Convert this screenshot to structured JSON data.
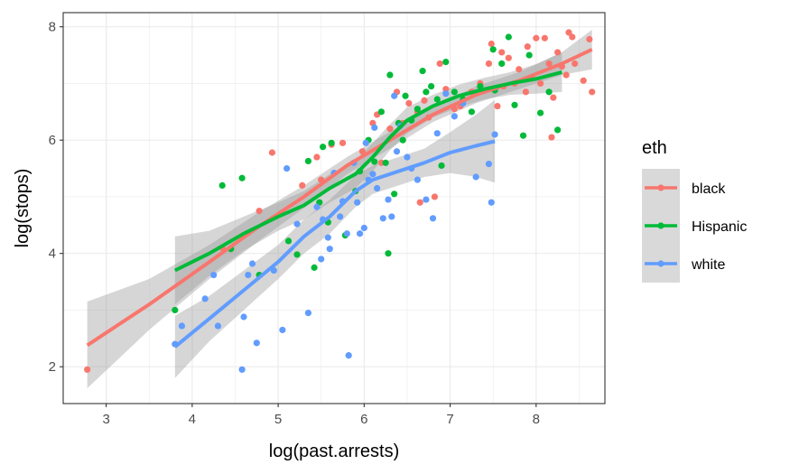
{
  "chart_data": {
    "type": "scatter",
    "xlabel": "log(past.arrests)",
    "ylabel": "log(stops)",
    "xlim": [
      2.5,
      8.8
    ],
    "ylim": [
      1.35,
      8.25
    ],
    "x_ticks": [
      3,
      4,
      5,
      6,
      7,
      8
    ],
    "y_ticks": [
      2,
      4,
      6,
      8
    ],
    "grid": true,
    "legend": {
      "title": "eth",
      "position": "right"
    },
    "series": [
      {
        "name": "black",
        "color": "#F8766D",
        "points": [
          [
            2.78,
            1.95
          ],
          [
            4.35,
            4.1
          ],
          [
            4.78,
            4.75
          ],
          [
            4.93,
            5.78
          ],
          [
            5.28,
            5.2
          ],
          [
            5.45,
            5.7
          ],
          [
            5.5,
            5.3
          ],
          [
            5.62,
            5.92
          ],
          [
            5.75,
            5.95
          ],
          [
            5.98,
            5.8
          ],
          [
            6.1,
            6.3
          ],
          [
            6.15,
            6.45
          ],
          [
            6.2,
            5.6
          ],
          [
            6.3,
            6.2
          ],
          [
            6.38,
            6.85
          ],
          [
            6.45,
            6.3
          ],
          [
            6.52,
            6.65
          ],
          [
            6.62,
            6.5
          ],
          [
            6.65,
            4.9
          ],
          [
            6.7,
            6.7
          ],
          [
            6.75,
            6.4
          ],
          [
            6.82,
            5.0
          ],
          [
            6.88,
            7.35
          ],
          [
            6.95,
            6.9
          ],
          [
            7.05,
            6.55
          ],
          [
            7.12,
            6.6
          ],
          [
            7.25,
            6.85
          ],
          [
            7.35,
            7.0
          ],
          [
            7.45,
            7.35
          ],
          [
            7.48,
            7.7
          ],
          [
            7.55,
            6.6
          ],
          [
            7.6,
            7.55
          ],
          [
            7.62,
            6.95
          ],
          [
            7.68,
            7.45
          ],
          [
            7.75,
            7.0
          ],
          [
            7.8,
            7.25
          ],
          [
            7.88,
            6.85
          ],
          [
            7.9,
            7.65
          ],
          [
            7.95,
            7.1
          ],
          [
            8.0,
            7.8
          ],
          [
            8.05,
            7.0
          ],
          [
            8.1,
            7.8
          ],
          [
            8.15,
            7.35
          ],
          [
            8.18,
            6.05
          ],
          [
            8.2,
            6.75
          ],
          [
            8.25,
            7.55
          ],
          [
            8.3,
            7.3
          ],
          [
            8.35,
            7.15
          ],
          [
            8.38,
            7.9
          ],
          [
            8.42,
            7.82
          ],
          [
            8.45,
            7.35
          ],
          [
            8.55,
            7.05
          ],
          [
            8.62,
            7.78
          ],
          [
            8.65,
            6.85
          ]
        ]
      },
      {
        "name": "Hispanic",
        "color": "#00BA38",
        "points": [
          [
            3.8,
            3.0
          ],
          [
            4.35,
            5.2
          ],
          [
            4.45,
            4.08
          ],
          [
            4.58,
            5.33
          ],
          [
            4.78,
            3.62
          ],
          [
            5.12,
            4.22
          ],
          [
            5.22,
            3.98
          ],
          [
            5.35,
            5.63
          ],
          [
            5.42,
            3.75
          ],
          [
            5.48,
            4.9
          ],
          [
            5.52,
            5.88
          ],
          [
            5.58,
            4.55
          ],
          [
            5.62,
            5.95
          ],
          [
            5.78,
            4.32
          ],
          [
            5.9,
            5.1
          ],
          [
            5.95,
            5.45
          ],
          [
            6.05,
            6.0
          ],
          [
            6.12,
            5.62
          ],
          [
            6.2,
            6.5
          ],
          [
            6.25,
            5.6
          ],
          [
            6.28,
            4.0
          ],
          [
            6.3,
            7.15
          ],
          [
            6.35,
            5.05
          ],
          [
            6.4,
            6.3
          ],
          [
            6.45,
            6.0
          ],
          [
            6.48,
            6.78
          ],
          [
            6.55,
            6.35
          ],
          [
            6.62,
            6.55
          ],
          [
            6.68,
            7.22
          ],
          [
            6.72,
            6.85
          ],
          [
            6.78,
            6.95
          ],
          [
            6.85,
            6.72
          ],
          [
            6.9,
            5.55
          ],
          [
            6.95,
            7.38
          ],
          [
            7.05,
            6.85
          ],
          [
            7.15,
            6.72
          ],
          [
            7.25,
            6.5
          ],
          [
            7.35,
            6.95
          ],
          [
            7.5,
            7.6
          ],
          [
            7.52,
            6.88
          ],
          [
            7.6,
            7.35
          ],
          [
            7.68,
            7.82
          ],
          [
            7.75,
            6.62
          ],
          [
            7.85,
            6.08
          ],
          [
            7.92,
            7.5
          ],
          [
            8.05,
            6.48
          ],
          [
            8.15,
            6.85
          ],
          [
            8.25,
            6.18
          ]
        ]
      },
      {
        "name": "white",
        "color": "#619CFF",
        "points": [
          [
            3.8,
            2.4
          ],
          [
            3.88,
            2.72
          ],
          [
            4.15,
            3.2
          ],
          [
            4.25,
            3.62
          ],
          [
            4.3,
            2.72
          ],
          [
            4.58,
            1.95
          ],
          [
            4.6,
            2.88
          ],
          [
            4.65,
            3.62
          ],
          [
            4.7,
            3.82
          ],
          [
            4.75,
            2.42
          ],
          [
            4.95,
            3.7
          ],
          [
            5.05,
            2.65
          ],
          [
            5.1,
            5.5
          ],
          [
            5.22,
            4.52
          ],
          [
            5.35,
            2.95
          ],
          [
            5.45,
            4.82
          ],
          [
            5.5,
            3.9
          ],
          [
            5.52,
            4.6
          ],
          [
            5.58,
            4.28
          ],
          [
            5.6,
            4.08
          ],
          [
            5.65,
            5.42
          ],
          [
            5.72,
            4.65
          ],
          [
            5.75,
            4.92
          ],
          [
            5.8,
            4.35
          ],
          [
            5.82,
            2.2
          ],
          [
            5.88,
            5.6
          ],
          [
            5.92,
            4.9
          ],
          [
            5.95,
            4.35
          ],
          [
            6.0,
            4.45
          ],
          [
            6.02,
            5.95
          ],
          [
            6.05,
            5.3
          ],
          [
            6.1,
            5.4
          ],
          [
            6.12,
            6.22
          ],
          [
            6.15,
            5.15
          ],
          [
            6.22,
            4.62
          ],
          [
            6.28,
            4.95
          ],
          [
            6.32,
            4.65
          ],
          [
            6.35,
            6.78
          ],
          [
            6.38,
            5.8
          ],
          [
            6.42,
            6.25
          ],
          [
            6.5,
            5.7
          ],
          [
            6.55,
            5.5
          ],
          [
            6.62,
            5.3
          ],
          [
            6.72,
            4.95
          ],
          [
            6.8,
            4.62
          ],
          [
            6.85,
            6.12
          ],
          [
            6.95,
            6.82
          ],
          [
            7.05,
            6.42
          ],
          [
            7.15,
            6.65
          ],
          [
            7.3,
            5.35
          ],
          [
            7.45,
            5.58
          ],
          [
            7.48,
            4.9
          ],
          [
            7.52,
            6.1
          ]
        ]
      }
    ],
    "smooth_lines": [
      {
        "name": "black",
        "color": "#F8766D",
        "points": [
          [
            2.78,
            2.38
          ],
          [
            3.5,
            3.1
          ],
          [
            4.2,
            3.85
          ],
          [
            4.8,
            4.5
          ],
          [
            5.3,
            5.0
          ],
          [
            5.8,
            5.55
          ],
          [
            6.3,
            6.0
          ],
          [
            6.8,
            6.45
          ],
          [
            7.3,
            6.8
          ],
          [
            7.8,
            7.05
          ],
          [
            8.3,
            7.35
          ],
          [
            8.65,
            7.6
          ]
        ],
        "band": [
          [
            2.78,
            1.62,
            3.15
          ],
          [
            3.5,
            2.65,
            3.55
          ],
          [
            4.2,
            3.55,
            4.15
          ],
          [
            4.8,
            4.25,
            4.75
          ],
          [
            5.3,
            4.8,
            5.2
          ],
          [
            5.8,
            5.4,
            5.7
          ],
          [
            6.3,
            5.85,
            6.15
          ],
          [
            6.8,
            6.32,
            6.58
          ],
          [
            7.3,
            6.65,
            6.95
          ],
          [
            7.8,
            6.9,
            7.2
          ],
          [
            8.3,
            7.15,
            7.55
          ],
          [
            8.65,
            7.25,
            7.95
          ]
        ]
      },
      {
        "name": "Hispanic",
        "color": "#00BA38",
        "points": [
          [
            3.8,
            3.7
          ],
          [
            4.2,
            4.0
          ],
          [
            4.6,
            4.35
          ],
          [
            5.0,
            4.65
          ],
          [
            5.3,
            4.85
          ],
          [
            5.6,
            5.15
          ],
          [
            5.9,
            5.4
          ],
          [
            6.1,
            5.7
          ],
          [
            6.3,
            6.05
          ],
          [
            6.5,
            6.35
          ],
          [
            6.8,
            6.6
          ],
          [
            7.1,
            6.78
          ],
          [
            7.4,
            6.9
          ],
          [
            7.7,
            7.0
          ],
          [
            8.0,
            7.08
          ],
          [
            8.3,
            7.2
          ]
        ],
        "band": [
          [
            3.8,
            3.1,
            4.3
          ],
          [
            4.2,
            3.6,
            4.4
          ],
          [
            4.6,
            4.05,
            4.65
          ],
          [
            5.0,
            4.4,
            4.9
          ],
          [
            5.3,
            4.6,
            5.1
          ],
          [
            5.6,
            4.9,
            5.4
          ],
          [
            5.9,
            5.15,
            5.65
          ],
          [
            6.1,
            5.45,
            5.95
          ],
          [
            6.3,
            5.82,
            6.28
          ],
          [
            6.5,
            6.12,
            6.58
          ],
          [
            6.8,
            6.4,
            6.8
          ],
          [
            7.1,
            6.58,
            6.98
          ],
          [
            7.4,
            6.72,
            7.1
          ],
          [
            7.7,
            6.8,
            7.2
          ],
          [
            8.0,
            6.82,
            7.34
          ],
          [
            8.3,
            6.85,
            7.55
          ]
        ]
      },
      {
        "name": "white",
        "color": "#619CFF",
        "points": [
          [
            3.8,
            2.35
          ],
          [
            4.2,
            2.85
          ],
          [
            4.6,
            3.35
          ],
          [
            5.0,
            3.85
          ],
          [
            5.3,
            4.3
          ],
          [
            5.6,
            4.65
          ],
          [
            5.9,
            5.1
          ],
          [
            6.1,
            5.3
          ],
          [
            6.4,
            5.45
          ],
          [
            6.7,
            5.6
          ],
          [
            7.0,
            5.78
          ],
          [
            7.3,
            5.9
          ],
          [
            7.52,
            5.98
          ]
        ],
        "band": [
          [
            3.8,
            1.8,
            2.9
          ],
          [
            4.2,
            2.45,
            3.25
          ],
          [
            4.6,
            3.0,
            3.7
          ],
          [
            5.0,
            3.55,
            4.15
          ],
          [
            5.3,
            4.0,
            4.6
          ],
          [
            5.6,
            4.35,
            4.95
          ],
          [
            5.9,
            4.82,
            5.38
          ],
          [
            6.1,
            5.05,
            5.55
          ],
          [
            6.4,
            5.2,
            5.7
          ],
          [
            6.7,
            5.35,
            5.85
          ],
          [
            7.0,
            5.42,
            6.14
          ],
          [
            7.3,
            5.35,
            6.45
          ],
          [
            7.52,
            5.25,
            6.71
          ]
        ]
      }
    ]
  }
}
